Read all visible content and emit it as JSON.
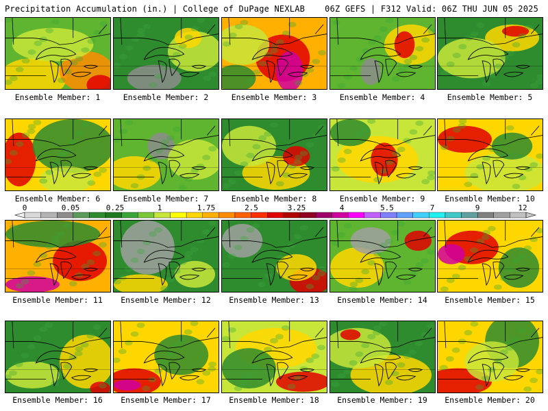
{
  "header": {
    "title": "Precipitation Accumulation (in.) | College of DuPage NEXLAB",
    "run_info": "06Z GEFS | F312 Valid: 06Z THU JUN 05 2025"
  },
  "colorbar": {
    "tick_labels": [
      "0",
      "0.05",
      "0.25",
      "1",
      "1.75",
      "2.5",
      "3.25",
      "4",
      "5.5",
      "7",
      "9",
      "12"
    ],
    "colors": [
      "#d8d8d8",
      "#b4b4b4",
      "#8c8c8c",
      "#5a9a5a",
      "#2e8b2e",
      "#1f7a1f",
      "#3aa63a",
      "#7ac83a",
      "#c8e63a",
      "#ffff00",
      "#ffd700",
      "#ffb000",
      "#ff8c00",
      "#ff6000",
      "#ff3000",
      "#e00000",
      "#b00000",
      "#900020",
      "#a0006a",
      "#d000a0",
      "#ff00ff",
      "#c060ff",
      "#8080ff",
      "#60a0ff",
      "#40d0ff",
      "#20f0f0",
      "#40c8c8",
      "#60a0a0",
      "#808080",
      "#a0a0a0",
      "#c0c0c0"
    ]
  },
  "panels": [
    {
      "label": "Ensemble Member: 1"
    },
    {
      "label": "Ensemble Member: 2"
    },
    {
      "label": "Ensemble Member: 3"
    },
    {
      "label": "Ensemble Member: 4"
    },
    {
      "label": "Ensemble Member: 5"
    },
    {
      "label": "Ensemble Member: 6"
    },
    {
      "label": "Ensemble Member: 7"
    },
    {
      "label": "Ensemble Member: 8"
    },
    {
      "label": "Ensemble Member: 9"
    },
    {
      "label": "Ensemble Member: 10"
    },
    {
      "label": "Ensemble Member: 11"
    },
    {
      "label": "Ensemble Member: 12"
    },
    {
      "label": "Ensemble Member: 13"
    },
    {
      "label": "Ensemble Member: 14"
    },
    {
      "label": "Ensemble Member: 15"
    },
    {
      "label": "Ensemble Member: 16"
    },
    {
      "label": "Ensemble Member: 17"
    },
    {
      "label": "Ensemble Member: 18"
    },
    {
      "label": "Ensemble Member: 19"
    },
    {
      "label": "Ensemble Member: 20"
    }
  ]
}
